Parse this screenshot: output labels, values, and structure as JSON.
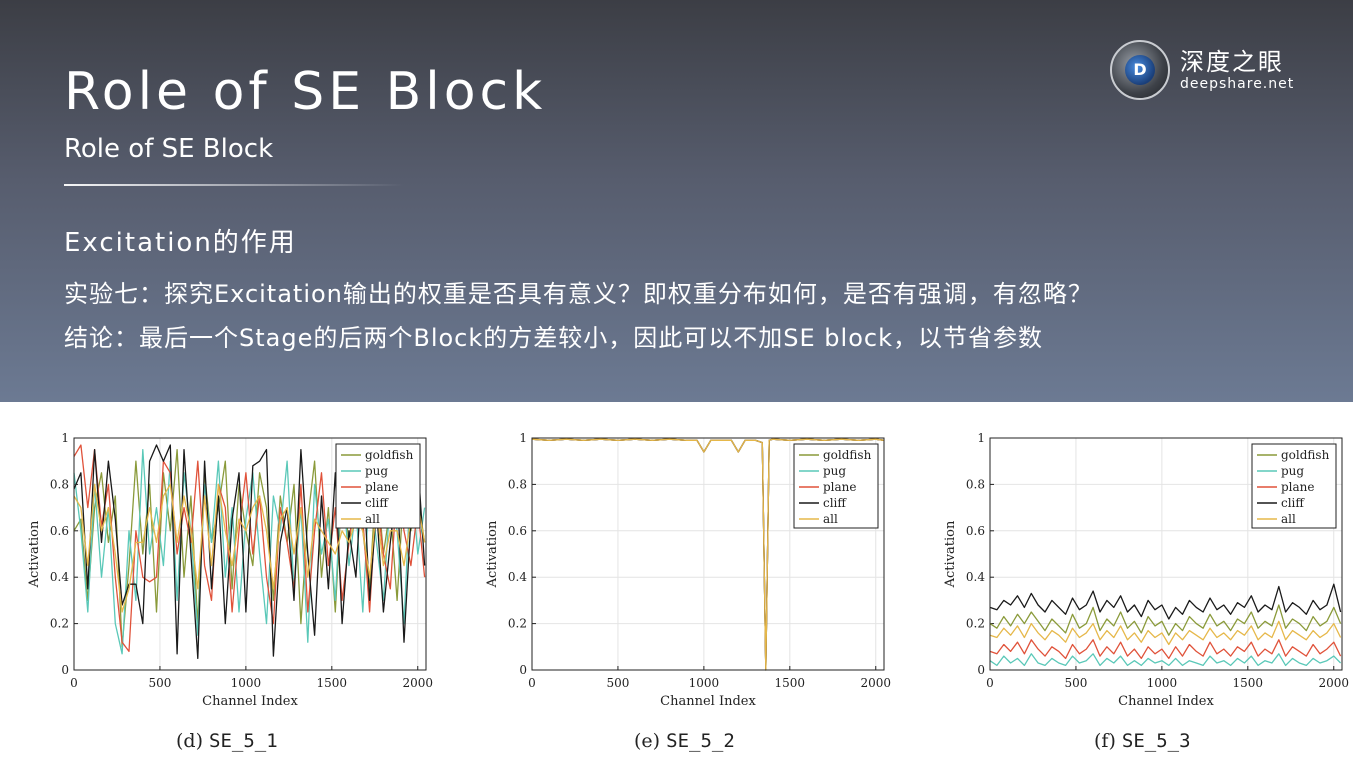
{
  "slide": {
    "title": "Role of SE Block",
    "subtitle": "Role of SE Block",
    "section_heading": "Excitation的作用",
    "line1": "实验七：探究Excitation输出的权重是否具有意义？即权重分布如何，是否有强调，有忽略？",
    "line2": "结论：最后一个Stage的后两个Block的方差较小，因此可以不加SE block，以节省参数"
  },
  "logo": {
    "cn": "深度之眼",
    "en": "deepshare.net",
    "letter": "D"
  },
  "colors": {
    "goldfish": "#8a9a3a",
    "pug": "#5ac8b8",
    "plane": "#e0523a",
    "cliff": "#1a1a1a",
    "all": "#e6b84a"
  },
  "chart_data": [
    {
      "type": "line",
      "caption_label": "(d)",
      "caption_code": "SE_5_1",
      "xlabel": "Channel Index",
      "ylabel": "Activation",
      "xlim": [
        0,
        2048
      ],
      "ylim": [
        0,
        1
      ],
      "xticks": [
        "0",
        "500",
        "1000",
        "1500",
        "2000"
      ],
      "yticks": [
        "0",
        "0.2",
        "0.4",
        "0.6",
        "0.8",
        "1"
      ],
      "legend_position": "top-right",
      "x": [
        0,
        40,
        80,
        120,
        160,
        200,
        240,
        280,
        320,
        360,
        400,
        440,
        480,
        520,
        560,
        600,
        640,
        680,
        720,
        760,
        800,
        840,
        880,
        920,
        960,
        1000,
        1040,
        1080,
        1120,
        1160,
        1200,
        1240,
        1280,
        1320,
        1360,
        1400,
        1440,
        1480,
        1520,
        1560,
        1600,
        1640,
        1680,
        1720,
        1760,
        1800,
        1840,
        1880,
        1920,
        1960,
        2000,
        2040
      ],
      "series": [
        {
          "name": "goldfish",
          "values": [
            0.6,
            0.65,
            0.3,
            0.7,
            0.85,
            0.55,
            0.75,
            0.1,
            0.45,
            0.9,
            0.5,
            0.8,
            0.25,
            0.85,
            0.6,
            0.95,
            0.4,
            0.75,
            0.2,
            0.85,
            0.55,
            0.7,
            0.9,
            0.35,
            0.8,
            0.6,
            0.45,
            0.85,
            0.7,
            0.3,
            0.75,
            0.55,
            0.8,
            0.2,
            0.65,
            0.9,
            0.4,
            0.7,
            0.25,
            0.8,
            0.55,
            0.75,
            0.6,
            0.35,
            0.85,
            0.5,
            0.7,
            0.3,
            0.8,
            0.6,
            0.75,
            0.55
          ]
        },
        {
          "name": "pug",
          "values": [
            0.85,
            0.6,
            0.25,
            0.8,
            0.4,
            0.7,
            0.2,
            0.07,
            0.6,
            0.3,
            0.95,
            0.5,
            0.7,
            0.45,
            0.9,
            0.3,
            0.85,
            0.6,
            0.15,
            0.8,
            0.55,
            0.9,
            0.4,
            0.7,
            0.25,
            0.65,
            0.85,
            0.5,
            0.2,
            0.75,
            0.6,
            0.9,
            0.35,
            0.7,
            0.12,
            0.8,
            0.5,
            0.65,
            0.3,
            0.85,
            0.45,
            0.7,
            0.25,
            0.8,
            0.55,
            0.3,
            0.75,
            0.6,
            0.2,
            0.85,
            0.5,
            0.7
          ]
        },
        {
          "name": "plane",
          "values": [
            0.92,
            0.97,
            0.7,
            0.95,
            0.62,
            0.8,
            0.4,
            0.12,
            0.08,
            0.6,
            0.4,
            0.38,
            0.4,
            0.9,
            0.85,
            0.5,
            0.7,
            0.55,
            0.9,
            0.45,
            0.3,
            0.8,
            0.7,
            0.25,
            0.6,
            0.85,
            0.5,
            0.75,
            0.4,
            0.2,
            0.7,
            0.55,
            0.35,
            0.8,
            0.25,
            0.6,
            0.85,
            0.45,
            0.7,
            0.3,
            0.55,
            0.8,
            0.65,
            0.25,
            0.75,
            0.5,
            0.35,
            0.8,
            0.6,
            0.45,
            0.7,
            0.4
          ]
        },
        {
          "name": "cliff",
          "values": [
            0.78,
            0.85,
            0.35,
            0.95,
            0.55,
            0.9,
            0.65,
            0.28,
            0.37,
            0.37,
            0.2,
            0.9,
            0.97,
            0.9,
            0.97,
            0.07,
            0.95,
            0.5,
            0.05,
            0.9,
            0.35,
            0.75,
            0.2,
            0.65,
            0.85,
            0.25,
            0.88,
            0.9,
            0.95,
            0.06,
            0.55,
            0.7,
            0.3,
            0.95,
            0.5,
            0.15,
            0.75,
            0.35,
            0.85,
            0.2,
            0.6,
            0.4,
            0.9,
            0.3,
            0.7,
            0.25,
            0.55,
            0.8,
            0.12,
            0.65,
            0.9,
            0.45
          ]
        },
        {
          "name": "all",
          "values": [
            0.75,
            0.7,
            0.45,
            0.8,
            0.6,
            0.7,
            0.5,
            0.25,
            0.35,
            0.55,
            0.55,
            0.7,
            0.55,
            0.75,
            0.8,
            0.55,
            0.75,
            0.6,
            0.35,
            0.75,
            0.45,
            0.8,
            0.6,
            0.45,
            0.65,
            0.6,
            0.7,
            0.75,
            0.6,
            0.35,
            0.65,
            0.7,
            0.5,
            0.7,
            0.4,
            0.65,
            0.6,
            0.55,
            0.5,
            0.6,
            0.55,
            0.65,
            0.6,
            0.4,
            0.7,
            0.45,
            0.6,
            0.6,
            0.45,
            0.65,
            0.72,
            0.55
          ]
        }
      ]
    },
    {
      "type": "line",
      "caption_label": "(e)",
      "caption_code": "SE_5_2",
      "xlabel": "Channel Index",
      "ylabel": "Activation",
      "xlim": [
        0,
        2048
      ],
      "ylim": [
        0,
        1
      ],
      "xticks": [
        "0",
        "500",
        "1000",
        "1500",
        "2000"
      ],
      "yticks": [
        "0",
        "0.2",
        "0.4",
        "0.6",
        "0.8",
        "1"
      ],
      "legend_position": "top-right",
      "x": [
        0,
        100,
        200,
        300,
        400,
        500,
        600,
        700,
        800,
        900,
        960,
        1000,
        1040,
        1100,
        1160,
        1200,
        1240,
        1300,
        1340,
        1360,
        1380,
        1400,
        1500,
        1600,
        1700,
        1800,
        1900,
        2000,
        2048
      ],
      "series": [
        {
          "name": "goldfish",
          "values": [
            0.995,
            0.99,
            0.995,
            0.99,
            0.995,
            0.99,
            0.995,
            0.99,
            0.995,
            0.99,
            0.99,
            0.94,
            0.99,
            0.99,
            0.99,
            0.94,
            0.99,
            0.99,
            0.98,
            0.0,
            0.99,
            0.995,
            0.99,
            0.995,
            0.99,
            0.995,
            0.99,
            0.995,
            0.99
          ]
        },
        {
          "name": "pug",
          "values": [
            0.995,
            0.99,
            0.995,
            0.99,
            0.995,
            0.99,
            0.995,
            0.99,
            0.995,
            0.99,
            0.99,
            0.94,
            0.99,
            0.99,
            0.99,
            0.94,
            0.99,
            0.99,
            0.98,
            0.0,
            0.99,
            0.995,
            0.99,
            0.995,
            0.99,
            0.995,
            0.99,
            0.995,
            0.99
          ]
        },
        {
          "name": "plane",
          "values": [
            0.995,
            0.99,
            0.995,
            0.99,
            0.995,
            0.99,
            0.995,
            0.99,
            0.995,
            0.99,
            0.99,
            0.94,
            0.99,
            0.99,
            0.99,
            0.94,
            0.99,
            0.99,
            0.98,
            0.0,
            0.99,
            0.995,
            0.99,
            0.995,
            0.99,
            0.995,
            0.99,
            0.995,
            0.99
          ]
        },
        {
          "name": "cliff",
          "values": [
            0.995,
            0.99,
            0.995,
            0.99,
            0.995,
            0.99,
            0.995,
            0.99,
            0.995,
            0.99,
            0.99,
            0.94,
            0.99,
            0.99,
            0.99,
            0.94,
            0.99,
            0.99,
            0.98,
            0.0,
            0.99,
            0.995,
            0.99,
            0.995,
            0.99,
            0.995,
            0.99,
            0.995,
            0.99
          ]
        },
        {
          "name": "all",
          "values": [
            0.995,
            0.99,
            0.995,
            0.99,
            0.995,
            0.99,
            0.995,
            0.99,
            0.995,
            0.99,
            0.99,
            0.94,
            0.99,
            0.99,
            0.99,
            0.94,
            0.99,
            0.99,
            0.98,
            0.0,
            0.99,
            0.995,
            0.99,
            0.995,
            0.99,
            0.995,
            0.99,
            0.995,
            0.99
          ]
        }
      ]
    },
    {
      "type": "line",
      "caption_label": "(f)",
      "caption_code": "SE_5_3",
      "xlabel": "Channel Index",
      "ylabel": "Activation",
      "xlim": [
        0,
        2048
      ],
      "ylim": [
        0,
        1
      ],
      "xticks": [
        "0",
        "500",
        "1000",
        "1500",
        "2000"
      ],
      "yticks": [
        "0",
        "0.2",
        "0.4",
        "0.6",
        "0.8",
        "1"
      ],
      "legend_position": "top-right",
      "x": [
        0,
        40,
        80,
        120,
        160,
        200,
        240,
        280,
        320,
        360,
        400,
        440,
        480,
        520,
        560,
        600,
        640,
        680,
        720,
        760,
        800,
        840,
        880,
        920,
        960,
        1000,
        1040,
        1080,
        1120,
        1160,
        1200,
        1240,
        1280,
        1320,
        1360,
        1400,
        1440,
        1480,
        1520,
        1560,
        1600,
        1640,
        1680,
        1720,
        1760,
        1800,
        1840,
        1880,
        1920,
        1960,
        2000,
        2040
      ],
      "series": [
        {
          "name": "goldfish",
          "values": [
            0.2,
            0.18,
            0.23,
            0.19,
            0.24,
            0.2,
            0.25,
            0.21,
            0.17,
            0.22,
            0.19,
            0.16,
            0.24,
            0.18,
            0.2,
            0.27,
            0.17,
            0.22,
            0.19,
            0.25,
            0.18,
            0.21,
            0.16,
            0.23,
            0.19,
            0.21,
            0.15,
            0.2,
            0.17,
            0.23,
            0.2,
            0.18,
            0.24,
            0.19,
            0.21,
            0.17,
            0.22,
            0.2,
            0.25,
            0.18,
            0.21,
            0.19,
            0.28,
            0.18,
            0.22,
            0.2,
            0.17,
            0.23,
            0.19,
            0.21,
            0.27,
            0.2
          ]
        },
        {
          "name": "pug",
          "values": [
            0.04,
            0.02,
            0.06,
            0.03,
            0.05,
            0.02,
            0.07,
            0.03,
            0.02,
            0.05,
            0.03,
            0.02,
            0.06,
            0.03,
            0.04,
            0.07,
            0.02,
            0.05,
            0.03,
            0.06,
            0.02,
            0.04,
            0.02,
            0.05,
            0.03,
            0.04,
            0.02,
            0.05,
            0.02,
            0.04,
            0.03,
            0.02,
            0.06,
            0.03,
            0.04,
            0.02,
            0.05,
            0.03,
            0.06,
            0.02,
            0.04,
            0.03,
            0.07,
            0.02,
            0.05,
            0.03,
            0.02,
            0.05,
            0.03,
            0.04,
            0.06,
            0.03
          ]
        },
        {
          "name": "plane",
          "values": [
            0.08,
            0.07,
            0.11,
            0.08,
            0.12,
            0.07,
            0.13,
            0.09,
            0.06,
            0.1,
            0.08,
            0.05,
            0.11,
            0.07,
            0.09,
            0.13,
            0.06,
            0.1,
            0.07,
            0.12,
            0.06,
            0.09,
            0.05,
            0.1,
            0.07,
            0.09,
            0.05,
            0.1,
            0.06,
            0.11,
            0.08,
            0.06,
            0.12,
            0.07,
            0.09,
            0.06,
            0.1,
            0.08,
            0.12,
            0.06,
            0.09,
            0.07,
            0.13,
            0.06,
            0.1,
            0.08,
            0.06,
            0.11,
            0.07,
            0.09,
            0.12,
            0.06
          ]
        },
        {
          "name": "cliff",
          "values": [
            0.27,
            0.26,
            0.3,
            0.28,
            0.32,
            0.27,
            0.33,
            0.28,
            0.25,
            0.3,
            0.27,
            0.24,
            0.31,
            0.26,
            0.28,
            0.34,
            0.25,
            0.3,
            0.27,
            0.32,
            0.25,
            0.28,
            0.23,
            0.3,
            0.26,
            0.28,
            0.22,
            0.27,
            0.24,
            0.3,
            0.27,
            0.25,
            0.31,
            0.26,
            0.28,
            0.24,
            0.29,
            0.27,
            0.32,
            0.25,
            0.28,
            0.26,
            0.36,
            0.25,
            0.29,
            0.27,
            0.24,
            0.3,
            0.26,
            0.28,
            0.37,
            0.25
          ]
        },
        {
          "name": "all",
          "values": [
            0.15,
            0.14,
            0.18,
            0.15,
            0.19,
            0.14,
            0.2,
            0.16,
            0.13,
            0.17,
            0.15,
            0.12,
            0.18,
            0.14,
            0.16,
            0.2,
            0.13,
            0.17,
            0.14,
            0.19,
            0.13,
            0.16,
            0.12,
            0.17,
            0.14,
            0.16,
            0.11,
            0.16,
            0.13,
            0.17,
            0.15,
            0.13,
            0.18,
            0.14,
            0.16,
            0.13,
            0.17,
            0.15,
            0.19,
            0.13,
            0.16,
            0.14,
            0.21,
            0.13,
            0.17,
            0.15,
            0.13,
            0.17,
            0.14,
            0.16,
            0.2,
            0.14
          ]
        }
      ]
    }
  ]
}
